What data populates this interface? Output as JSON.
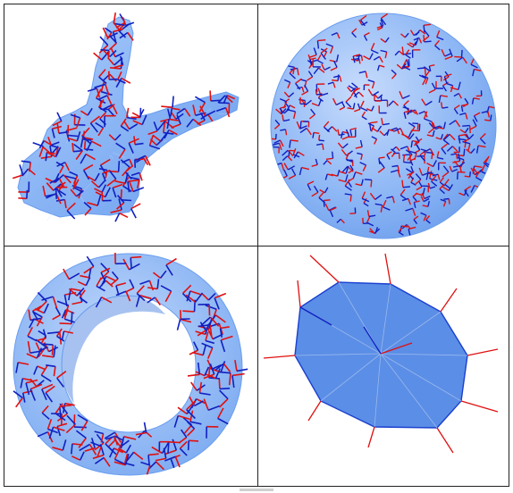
{
  "panels": [
    {
      "name": "bunny",
      "shape": "bunny-mesh"
    },
    {
      "name": "sphere",
      "shape": "sphere-mesh"
    },
    {
      "name": "torus",
      "shape": "torus-mesh"
    },
    {
      "name": "disk",
      "shape": "polygon-disk-mesh"
    }
  ],
  "colors": {
    "surface": "#7fb0f4",
    "surface_light": "#b8d4fb",
    "disk_fill": "#5b8ee6",
    "mesh_line": "#9cc0f2",
    "red_vector": "#e01010",
    "blue_vector": "#1020c0",
    "border": "#222222"
  }
}
